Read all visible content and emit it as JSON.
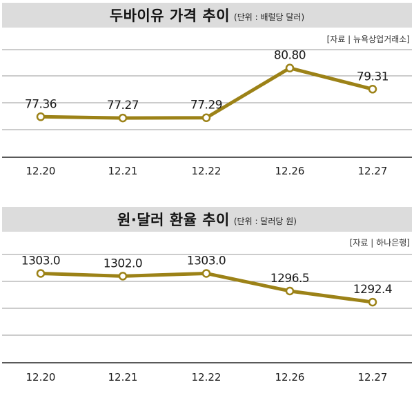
{
  "chart_data": [
    {
      "type": "line",
      "title": "두바이유 가격 추이",
      "unit": "(단위 : 배럴당 달러)",
      "source": "[자료 | 뉴욕상업거래소]",
      "categories": [
        "12.20",
        "12.21",
        "12.22",
        "12.26",
        "12.27"
      ],
      "values": [
        77.36,
        77.27,
        77.29,
        80.8,
        79.31
      ],
      "value_labels": [
        "77.36",
        "77.27",
        "77.29",
        "80.80",
        "79.31"
      ],
      "ylim": [
        74.5,
        82.1
      ],
      "grid": true,
      "color": "#9c8217"
    },
    {
      "type": "line",
      "title": "원·달러 환율 추이",
      "unit": "(단위 : 달러당 원)",
      "source": "[자료 | 하나은행]",
      "categories": [
        "12.20",
        "12.21",
        "12.22",
        "12.26",
        "12.27"
      ],
      "values": [
        1303.0,
        1302.0,
        1303.0,
        1296.5,
        1292.4
      ],
      "value_labels": [
        "1303.0",
        "1302.0",
        "1303.0",
        "1296.5",
        "1292.4"
      ],
      "ylim": [
        1270,
        1310
      ],
      "grid": true,
      "color": "#9c8217"
    }
  ]
}
